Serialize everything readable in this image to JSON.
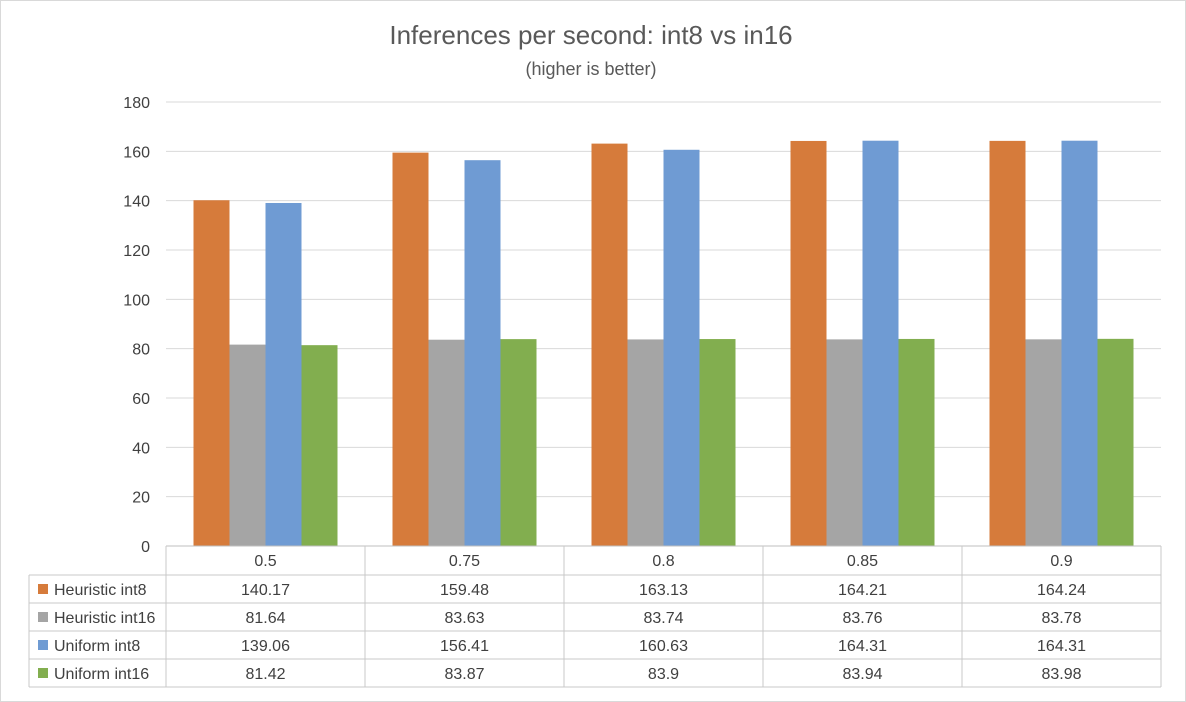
{
  "chart_data": {
    "type": "bar",
    "title": "Inferences per second: int8 vs in16",
    "subtitle": "(higher is better)",
    "xlabel": "",
    "ylabel": "",
    "categories": [
      "0.5",
      "0.75",
      "0.8",
      "0.85",
      "0.9"
    ],
    "ylim": [
      0,
      180
    ],
    "yticks": [
      0,
      20,
      40,
      60,
      80,
      100,
      120,
      140,
      160,
      180
    ],
    "grid": true,
    "legend": "data-table",
    "series": [
      {
        "name": "Heuristic int8",
        "color": "#d67b3b",
        "values": [
          140.17,
          159.48,
          163.13,
          164.21,
          164.24
        ],
        "labels": [
          "140.17",
          "159.48",
          "163.13",
          "164.21",
          "164.24"
        ]
      },
      {
        "name": "Heuristic int16",
        "color": "#a5a5a5",
        "values": [
          81.64,
          83.63,
          83.74,
          83.76,
          83.78
        ],
        "labels": [
          "81.64",
          "83.63",
          "83.74",
          "83.76",
          "83.78"
        ]
      },
      {
        "name": "Uniform int8",
        "color": "#6f9bd3",
        "values": [
          139.06,
          156.41,
          160.63,
          164.31,
          164.31
        ],
        "labels": [
          "139.06",
          "156.41",
          "160.63",
          "164.31",
          "164.31"
        ]
      },
      {
        "name": "Uniform int16",
        "color": "#82ae4f",
        "values": [
          81.42,
          83.87,
          83.9,
          83.94,
          83.98
        ],
        "labels": [
          "81.42",
          "83.87",
          "83.9",
          "83.94",
          "83.98"
        ]
      }
    ]
  }
}
